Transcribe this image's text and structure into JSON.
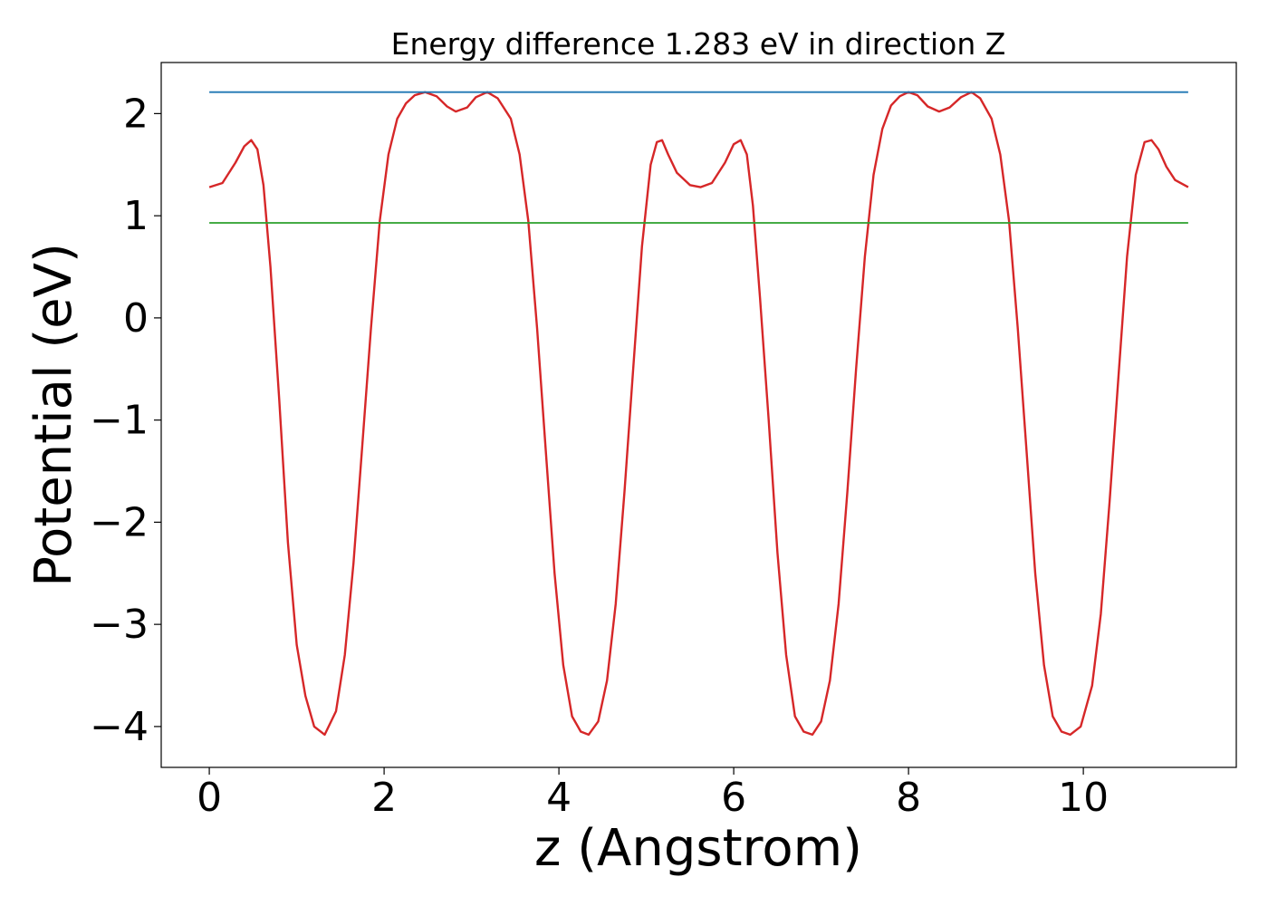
{
  "chart_data": {
    "type": "line",
    "title": "Energy difference 1.283 eV in direction Z",
    "xlabel": "z (Angstrom)",
    "ylabel": "Potential (eV)",
    "xlim": [
      -0.55,
      11.75
    ],
    "ylim": [
      -4.4,
      2.5
    ],
    "xticks": [
      0,
      2,
      4,
      6,
      8,
      10
    ],
    "xtick_labels": [
      "0",
      "2",
      "4",
      "6",
      "8",
      "10"
    ],
    "yticks": [
      2,
      1,
      0,
      -1,
      -2,
      -3,
      -4
    ],
    "ytick_labels": [
      "2",
      "1",
      "0",
      "−1",
      "−2",
      "−3",
      "−4"
    ],
    "grid": false,
    "legend": "none",
    "series": [
      {
        "color": "#d62728",
        "x": [
          0,
          0.15,
          0.3,
          0.4,
          0.48,
          0.55,
          0.62,
          0.7,
          0.8,
          0.9,
          1.0,
          1.1,
          1.2,
          1.32,
          1.45,
          1.55,
          1.65,
          1.75,
          1.85,
          1.95,
          2.05,
          2.15,
          2.25,
          2.35,
          2.47,
          2.6,
          2.72,
          2.82,
          2.95,
          3.05,
          3.18,
          3.3,
          3.45,
          3.55,
          3.65,
          3.75,
          3.85,
          3.95,
          4.05,
          4.15,
          4.25,
          4.34,
          4.45,
          4.55,
          4.65,
          4.75,
          4.85,
          4.95,
          5.05,
          5.12,
          5.18,
          5.25,
          5.35,
          5.5,
          5.62,
          5.75,
          5.9,
          6.0,
          6.08,
          6.15,
          6.22,
          6.3,
          6.4,
          6.5,
          6.6,
          6.7,
          6.8,
          6.9,
          7.0,
          7.1,
          7.2,
          7.3,
          7.4,
          7.5,
          7.6,
          7.7,
          7.8,
          7.9,
          8.0,
          8.1,
          8.22,
          8.35,
          8.47,
          8.6,
          8.72,
          8.82,
          8.95,
          9.05,
          9.15,
          9.25,
          9.35,
          9.45,
          9.55,
          9.65,
          9.75,
          9.85,
          9.97,
          10.1,
          10.2,
          10.3,
          10.4,
          10.5,
          10.6,
          10.7,
          10.78,
          10.86,
          10.95,
          11.05,
          11.2
        ],
        "y": [
          1.28,
          1.32,
          1.52,
          1.68,
          1.74,
          1.65,
          1.3,
          0.5,
          -0.8,
          -2.2,
          -3.2,
          -3.7,
          -4.0,
          -4.08,
          -3.85,
          -3.3,
          -2.4,
          -1.25,
          -0.1,
          0.95,
          1.6,
          1.95,
          2.1,
          2.18,
          2.21,
          2.17,
          2.07,
          2.02,
          2.06,
          2.16,
          2.21,
          2.15,
          1.95,
          1.6,
          0.95,
          -0.1,
          -1.3,
          -2.5,
          -3.4,
          -3.9,
          -4.05,
          -4.08,
          -3.95,
          -3.55,
          -2.8,
          -1.7,
          -0.5,
          0.7,
          1.5,
          1.72,
          1.74,
          1.6,
          1.42,
          1.3,
          1.28,
          1.32,
          1.52,
          1.7,
          1.74,
          1.6,
          1.1,
          0.2,
          -1.0,
          -2.3,
          -3.3,
          -3.9,
          -4.05,
          -4.08,
          -3.95,
          -3.55,
          -2.8,
          -1.7,
          -0.5,
          0.6,
          1.4,
          1.85,
          2.08,
          2.17,
          2.21,
          2.18,
          2.07,
          2.02,
          2.06,
          2.16,
          2.21,
          2.15,
          1.95,
          1.6,
          0.95,
          -0.1,
          -1.3,
          -2.5,
          -3.4,
          -3.9,
          -4.05,
          -4.08,
          -4.0,
          -3.6,
          -2.9,
          -1.8,
          -0.6,
          0.6,
          1.4,
          1.72,
          1.74,
          1.65,
          1.48,
          1.35,
          1.28
        ]
      },
      {
        "color": "#1f77b4",
        "x": [
          0,
          11.2
        ],
        "y": [
          2.21,
          2.21
        ]
      },
      {
        "color": "#2ca02c",
        "x": [
          0,
          11.2
        ],
        "y": [
          0.93,
          0.93
        ]
      }
    ]
  }
}
